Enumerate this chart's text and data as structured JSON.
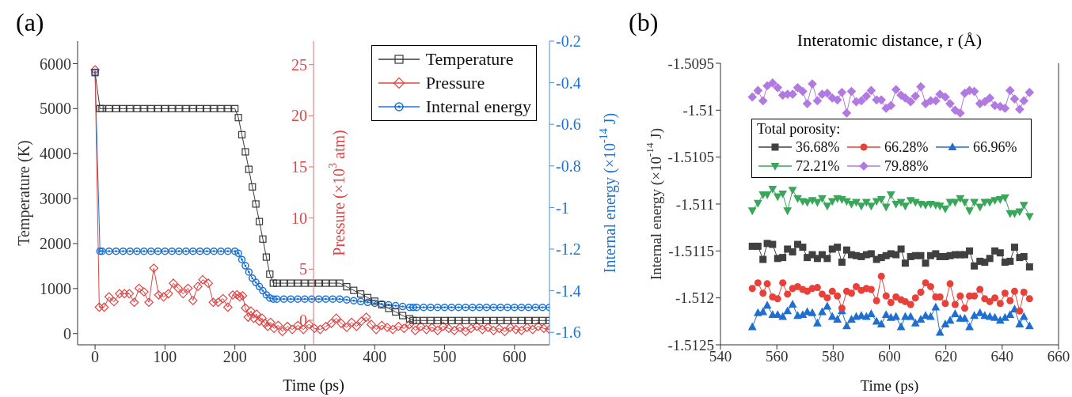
{
  "chart_data": [
    {
      "type": "line",
      "annotations": [
        "(a)"
      ],
      "xlabel": "Time (ps)",
      "ylabel": "Temperature (K)",
      "y2label": "Pressure (×10$^{3}$ atm)",
      "y3label": "Internal energy (×10$^{-14}$ J)",
      "xlim": [
        -25,
        650
      ],
      "xticks": [
        0,
        100,
        200,
        300,
        400,
        500,
        600
      ],
      "ylim": [
        -250,
        6500
      ],
      "yticks": [
        0,
        1000,
        2000,
        3000,
        4000,
        5000,
        6000
      ],
      "y2lim": [
        -2.4,
        27.3
      ],
      "y2ticks": [
        0,
        5,
        10,
        15,
        20,
        25
      ],
      "y3lim": [
        -1.66,
        -0.2
      ],
      "y3ticks": [
        -0.2,
        -0.4,
        -0.6,
        -0.8,
        -1,
        -1.2,
        -1.4,
        -1.6
      ],
      "legend": "top right",
      "series": [
        {
          "name": "Temperature",
          "color": "#3a3a3a",
          "marker": "square",
          "x": [
            0,
            7,
            10,
            20,
            30,
            40,
            50,
            60,
            70,
            80,
            90,
            100,
            110,
            120,
            130,
            140,
            150,
            160,
            170,
            180,
            190,
            200,
            205,
            210,
            215,
            220,
            225,
            230,
            235,
            240,
            245,
            250,
            255,
            260,
            270,
            280,
            290,
            300,
            310,
            320,
            330,
            340,
            350,
            360,
            370,
            380,
            390,
            400,
            410,
            420,
            430,
            440,
            450,
            455,
            460,
            470,
            480,
            490,
            500,
            510,
            520,
            530,
            540,
            550,
            560,
            570,
            580,
            590,
            600,
            610,
            620,
            630,
            640,
            650
          ],
          "values": [
            5800,
            5000,
            5000,
            5000,
            5000,
            5000,
            5000,
            5000,
            5000,
            5000,
            5000,
            5000,
            5000,
            5000,
            5000,
            5000,
            5000,
            5000,
            5000,
            5000,
            5000,
            5000,
            4800,
            4420,
            4040,
            3650,
            3260,
            2880,
            2490,
            2100,
            1700,
            1320,
            1120,
            1120,
            1120,
            1120,
            1120,
            1120,
            1120,
            1120,
            1120,
            1120,
            1120,
            1040,
            960,
            880,
            800,
            720,
            640,
            560,
            480,
            400,
            330,
            290,
            290,
            290,
            290,
            290,
            290,
            290,
            290,
            290,
            290,
            290,
            290,
            290,
            290,
            290,
            290,
            290,
            290,
            290,
            290,
            290
          ]
        },
        {
          "name": "Pressure",
          "color": "#e04545",
          "marker": "diamond",
          "axis": "y2",
          "x": [
            0,
            6,
            13,
            20,
            27,
            35,
            42,
            49,
            56,
            63,
            70,
            77,
            84,
            91,
            98,
            105,
            112,
            119,
            126,
            133,
            140,
            147,
            154,
            162,
            169,
            176,
            183,
            190,
            197,
            203,
            207,
            211,
            215,
            219,
            223,
            227,
            231,
            235,
            239,
            243,
            247,
            251,
            256,
            262,
            268,
            275,
            282,
            290,
            298,
            306,
            314,
            322,
            330,
            338,
            345,
            352,
            360,
            367,
            374,
            381,
            388,
            395,
            402,
            410,
            418,
            426,
            434,
            442,
            450,
            458,
            466,
            474,
            482,
            490,
            498,
            506,
            514,
            522,
            530,
            538,
            546,
            554,
            562,
            570,
            578,
            586,
            594,
            602,
            610,
            618,
            626,
            634,
            642,
            650
          ],
          "values": [
            24.5,
            1.28,
            1.28,
            2.29,
            1.81,
            2.6,
            2.6,
            2.6,
            1.76,
            3.13,
            2.78,
            1.76,
            5.1,
            2.47,
            2.29,
            2.6,
            3.62,
            3.13,
            2.6,
            3.13,
            1.94,
            3.31,
            3.97,
            3.62,
            1.76,
            1.76,
            2.12,
            1.28,
            2.47,
            2.5,
            2.3,
            2.4,
            1.2,
            0.3,
            0.9,
            0.2,
            0.6,
            -0.1,
            0.2,
            -0.3,
            -0.6,
            -0.2,
            -0.8,
            -0.5,
            -1.1,
            -0.6,
            -0.9,
            -0.5,
            -0.9,
            -0.4,
            -0.8,
            -0.9,
            -0.6,
            -0.3,
            0.2,
            -0.3,
            -0.7,
            -0.2,
            -0.6,
            -0.1,
            0.3,
            -0.4,
            -0.9,
            -0.5,
            -0.7,
            -0.9,
            -0.6,
            -0.8,
            -0.4,
            -1.0,
            -0.6,
            -0.9,
            -0.7,
            -1.0,
            -0.6,
            -0.8,
            -1.0,
            -0.7,
            -1.1,
            -0.8,
            -0.6,
            -0.9,
            -0.7,
            -1.0,
            -0.8,
            -1.1,
            -0.7,
            -0.9,
            -1.0,
            -0.7,
            -0.9,
            -0.6,
            -0.8,
            -0.9
          ]
        },
        {
          "name": "Internal energy",
          "color": "#1e73d2",
          "marker": "circle",
          "axis": "y3",
          "x": [
            0,
            7,
            10,
            20,
            30,
            40,
            50,
            60,
            70,
            80,
            90,
            100,
            110,
            120,
            130,
            140,
            150,
            160,
            170,
            180,
            190,
            200,
            205,
            210,
            215,
            220,
            225,
            230,
            235,
            240,
            245,
            250,
            255,
            260,
            270,
            280,
            290,
            300,
            310,
            320,
            330,
            340,
            350,
            360,
            370,
            380,
            390,
            400,
            410,
            420,
            430,
            440,
            450,
            455,
            460,
            470,
            480,
            490,
            500,
            510,
            520,
            530,
            540,
            550,
            560,
            570,
            580,
            590,
            600,
            610,
            620,
            630,
            640,
            650
          ],
          "values": [
            -0.35,
            -1.21,
            -1.21,
            -1.21,
            -1.21,
            -1.21,
            -1.21,
            -1.21,
            -1.21,
            -1.21,
            -1.21,
            -1.21,
            -1.21,
            -1.21,
            -1.21,
            -1.21,
            -1.21,
            -1.21,
            -1.21,
            -1.21,
            -1.21,
            -1.21,
            -1.22,
            -1.25,
            -1.28,
            -1.31,
            -1.34,
            -1.36,
            -1.38,
            -1.4,
            -1.42,
            -1.435,
            -1.44,
            -1.44,
            -1.44,
            -1.44,
            -1.44,
            -1.44,
            -1.44,
            -1.44,
            -1.44,
            -1.44,
            -1.44,
            -1.444,
            -1.448,
            -1.452,
            -1.456,
            -1.46,
            -1.464,
            -1.468,
            -1.472,
            -1.476,
            -1.48,
            -1.48,
            -1.48,
            -1.48,
            -1.48,
            -1.48,
            -1.48,
            -1.48,
            -1.48,
            -1.48,
            -1.48,
            -1.48,
            -1.48,
            -1.48,
            -1.48,
            -1.48,
            -1.48,
            -1.48,
            -1.48,
            -1.48,
            -1.48,
            -1.48
          ]
        }
      ]
    },
    {
      "type": "line",
      "annotations": [
        "(b)"
      ],
      "title": "Interatomic distance, r (Å)",
      "xlabel": "Time (ps)",
      "ylabel": "Internal energy (×10$^{-14}$ J)",
      "xlim": [
        540,
        660
      ],
      "xticks": [
        540,
        560,
        580,
        600,
        620,
        640,
        660
      ],
      "ylim": [
        -1.5125,
        -1.5095
      ],
      "yticks": [
        -1.5125,
        -1.512,
        -1.5115,
        -1.511,
        -1.5105,
        -1.51,
        -1.5095
      ],
      "legend": "top left",
      "legend_title": "Total porosity:",
      "x": [
        551.3,
        553.3,
        555.1,
        556.6,
        558.5,
        560.3,
        562.1,
        563.8,
        565.6,
        567.4,
        569.2,
        570.8,
        572.6,
        574.4,
        576.1,
        577.9,
        579.7,
        581.5,
        583.1,
        584.8,
        586.5,
        588.2,
        590,
        591.8,
        593.5,
        595.4,
        597.1,
        598.8,
        600.5,
        602.3,
        604.1,
        605.6,
        607.5,
        609.2,
        611.1,
        612.8,
        614.6,
        616.4,
        617.9,
        619.8,
        621.5,
        623.3,
        625.1,
        626.7,
        628.4,
        630.1,
        632.1,
        633.8,
        635.6,
        637.4,
        639.3,
        641,
        642.8,
        644.4,
        646.2,
        647.7,
        649.7
      ],
      "series": [
        {
          "name": "36.68%",
          "color": "#404040",
          "marker": "square",
          "values": [
            -1.51145,
            -1.51145,
            -1.51159,
            -1.51142,
            -1.51143,
            -1.51158,
            -1.51157,
            -1.51148,
            -1.51151,
            -1.51143,
            -1.51146,
            -1.51157,
            -1.51154,
            -1.51158,
            -1.51154,
            -1.51158,
            -1.51148,
            -1.51146,
            -1.51162,
            -1.51149,
            -1.51154,
            -1.51155,
            -1.51156,
            -1.51154,
            -1.51153,
            -1.51159,
            -1.51157,
            -1.51155,
            -1.51153,
            -1.51154,
            -1.51148,
            -1.51163,
            -1.51156,
            -1.51155,
            -1.51155,
            -1.51163,
            -1.51155,
            -1.51153,
            -1.51156,
            -1.51156,
            -1.51155,
            -1.51154,
            -1.51154,
            -1.51154,
            -1.5115,
            -1.51166,
            -1.51161,
            -1.51162,
            -1.51158,
            -1.5115,
            -1.51152,
            -1.51162,
            -1.51161,
            -1.51146,
            -1.51157,
            -1.51156,
            -1.51167
          ]
        },
        {
          "name": "66.28%",
          "color": "#e8413a",
          "marker": "circle",
          "values": [
            -1.5119,
            -1.51184,
            -1.51195,
            -1.51185,
            -1.51199,
            -1.51201,
            -1.51184,
            -1.51196,
            -1.5119,
            -1.51188,
            -1.51191,
            -1.51193,
            -1.5119,
            -1.51189,
            -1.51196,
            -1.512,
            -1.51193,
            -1.51198,
            -1.51211,
            -1.51193,
            -1.51195,
            -1.51188,
            -1.51192,
            -1.5119,
            -1.51191,
            -1.51203,
            -1.51177,
            -1.51198,
            -1.51205,
            -1.51199,
            -1.51202,
            -1.51204,
            -1.51207,
            -1.512,
            -1.51194,
            -1.51184,
            -1.51188,
            -1.51199,
            -1.51199,
            -1.51206,
            -1.51185,
            -1.51207,
            -1.51198,
            -1.51211,
            -1.51198,
            -1.51198,
            -1.51191,
            -1.51201,
            -1.51204,
            -1.512,
            -1.51206,
            -1.51195,
            -1.51203,
            -1.51193,
            -1.51214,
            -1.51194,
            -1.51201
          ]
        },
        {
          "name": "66.96%",
          "color": "#1f6fd0",
          "marker": "triangle",
          "values": [
            -1.51231,
            -1.51216,
            -1.51215,
            -1.51208,
            -1.51218,
            -1.51218,
            -1.5122,
            -1.51214,
            -1.51207,
            -1.51219,
            -1.51218,
            -1.51215,
            -1.51216,
            -1.51227,
            -1.51215,
            -1.51209,
            -1.5122,
            -1.51223,
            -1.51214,
            -1.5123,
            -1.51223,
            -1.5122,
            -1.51219,
            -1.5122,
            -1.51217,
            -1.51225,
            -1.51228,
            -1.51218,
            -1.51221,
            -1.5122,
            -1.51231,
            -1.5122,
            -1.5122,
            -1.51227,
            -1.51223,
            -1.51219,
            -1.5122,
            -1.5121,
            -1.51237,
            -1.51228,
            -1.51224,
            -1.51217,
            -1.51222,
            -1.51222,
            -1.51231,
            -1.51219,
            -1.51216,
            -1.51219,
            -1.5122,
            -1.51221,
            -1.51224,
            -1.51221,
            -1.51218,
            -1.51212,
            -1.51228,
            -1.5122,
            -1.5123
          ]
        },
        {
          "name": "72.21%",
          "color": "#3aa65a",
          "marker": "triangle-down",
          "values": [
            -1.51107,
            -1.51099,
            -1.5109,
            -1.5109,
            -1.51084,
            -1.51092,
            -1.51089,
            -1.51107,
            -1.51085,
            -1.51094,
            -1.51097,
            -1.51098,
            -1.51096,
            -1.51098,
            -1.51094,
            -1.51102,
            -1.51097,
            -1.51094,
            -1.51095,
            -1.51097,
            -1.511,
            -1.51098,
            -1.51102,
            -1.51098,
            -1.51102,
            -1.51097,
            -1.51095,
            -1.51103,
            -1.5109,
            -1.511,
            -1.51098,
            -1.51102,
            -1.51096,
            -1.51098,
            -1.511,
            -1.51101,
            -1.511,
            -1.51101,
            -1.51102,
            -1.51105,
            -1.51098,
            -1.51098,
            -1.51094,
            -1.51098,
            -1.51107,
            -1.51098,
            -1.51103,
            -1.51098,
            -1.51098,
            -1.51096,
            -1.51095,
            -1.51093,
            -1.5111,
            -1.5111,
            -1.51108,
            -1.51101,
            -1.51113
          ]
        },
        {
          "name": "79.88%",
          "color": "#b07ae0",
          "marker": "diamond",
          "values": [
            -1.50986,
            -1.50979,
            -1.5099,
            -1.50974,
            -1.50971,
            -1.50976,
            -1.50984,
            -1.50983,
            -1.50983,
            -1.50976,
            -1.5098,
            -1.50993,
            -1.50972,
            -1.5099,
            -1.50983,
            -1.50982,
            -1.50987,
            -1.50989,
            -1.50981,
            -1.51003,
            -1.5098,
            -1.50991,
            -1.5099,
            -1.50985,
            -1.50979,
            -1.50989,
            -1.50989,
            -1.50998,
            -1.50995,
            -1.50978,
            -1.50984,
            -1.50987,
            -1.50991,
            -1.50985,
            -1.50975,
            -1.50993,
            -1.5099,
            -1.5099,
            -1.50983,
            -1.50986,
            -1.50993,
            -1.51,
            -1.51003,
            -1.50982,
            -1.50979,
            -1.5098,
            -1.50993,
            -1.50991,
            -1.50987,
            -1.50995,
            -1.50996,
            -1.50998,
            -1.50979,
            -1.50988,
            -1.50999,
            -1.5099,
            -1.50981
          ]
        }
      ]
    }
  ]
}
